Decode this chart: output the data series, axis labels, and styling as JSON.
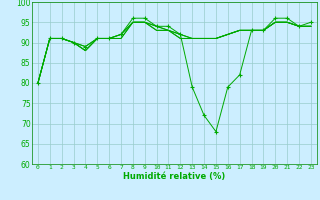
{
  "xlabel": "Humidité relative (%)",
  "background_color": "#cceeff",
  "grid_color": "#99cccc",
  "line_color": "#00aa00",
  "ylim": [
    60,
    100
  ],
  "xlim_min": -0.5,
  "xlim_max": 23.5,
  "yticks": [
    60,
    65,
    70,
    75,
    80,
    85,
    90,
    95,
    100
  ],
  "xticks": [
    0,
    1,
    2,
    3,
    4,
    5,
    6,
    7,
    8,
    9,
    10,
    11,
    12,
    13,
    14,
    15,
    16,
    17,
    18,
    19,
    20,
    21,
    22,
    23
  ],
  "series_bg": [
    [
      80,
      91,
      91,
      90,
      88,
      91,
      91,
      92,
      95,
      95,
      94,
      93,
      91,
      91,
      91,
      91,
      92,
      93,
      93,
      93,
      95,
      95,
      94,
      94
    ],
    [
      80,
      91,
      91,
      90,
      88,
      91,
      91,
      91,
      95,
      95,
      93,
      93,
      92,
      91,
      91,
      91,
      92,
      93,
      93,
      93,
      95,
      95,
      94,
      94
    ],
    [
      80,
      91,
      91,
      90,
      89,
      91,
      91,
      92,
      95,
      95,
      94,
      93,
      92,
      91,
      91,
      91,
      92,
      93,
      93,
      93,
      95,
      95,
      94,
      94
    ],
    [
      80,
      91,
      91,
      90,
      88,
      91,
      91,
      91,
      95,
      95,
      93,
      93,
      91,
      91,
      91,
      91,
      92,
      93,
      93,
      93,
      95,
      95,
      94,
      94
    ]
  ],
  "main_series": [
    80,
    91,
    91,
    90,
    89,
    91,
    91,
    92,
    96,
    96,
    94,
    94,
    92,
    79,
    72,
    68,
    79,
    82,
    93,
    93,
    96,
    96,
    94,
    95
  ]
}
